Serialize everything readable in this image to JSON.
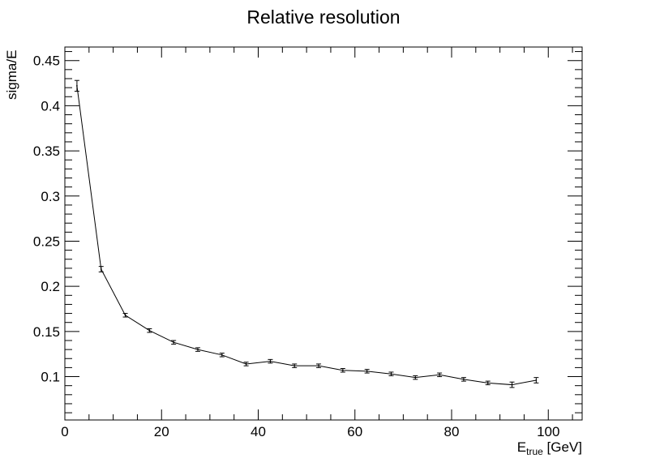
{
  "chart_data": {
    "type": "line",
    "title": "Relative resolution",
    "ylabel": "sigma/E",
    "xlabel": {
      "base": "E",
      "subscript": "true",
      "suffix": " [GeV]"
    },
    "xlim": [
      0,
      107
    ],
    "ylim": [
      0.052,
      0.465
    ],
    "x_ticks": [
      0,
      20,
      40,
      60,
      80,
      100
    ],
    "x_tick_labels": [
      "0",
      "20",
      "40",
      "60",
      "80",
      "100"
    ],
    "y_ticks": [
      0.1,
      0.15,
      0.2,
      0.25,
      0.3,
      0.35,
      0.4,
      0.45
    ],
    "y_tick_labels": [
      "0.1",
      "0.15",
      "0.2",
      "0.25",
      "0.3",
      "0.35",
      "0.4",
      "0.45"
    ],
    "grid": false,
    "series": [
      {
        "x": [
          2.5,
          7.5,
          12.5,
          17.5,
          22.5,
          27.5,
          32.5,
          37.5,
          42.5,
          47.5,
          52.5,
          57.5,
          62.5,
          67.5,
          72.5,
          77.5,
          82.5,
          87.5,
          92.5,
          97.5
        ],
        "y": [
          0.422,
          0.219,
          0.168,
          0.151,
          0.138,
          0.13,
          0.124,
          0.114,
          0.117,
          0.112,
          0.112,
          0.107,
          0.106,
          0.103,
          0.099,
          0.102,
          0.097,
          0.093,
          0.091,
          0.096
        ],
        "y_err": [
          0.006,
          0.003,
          0.002,
          0.002,
          0.002,
          0.002,
          0.002,
          0.002,
          0.002,
          0.002,
          0.002,
          0.002,
          0.002,
          0.002,
          0.002,
          0.002,
          0.002,
          0.002,
          0.003,
          0.003
        ],
        "color": "#000000"
      }
    ]
  }
}
